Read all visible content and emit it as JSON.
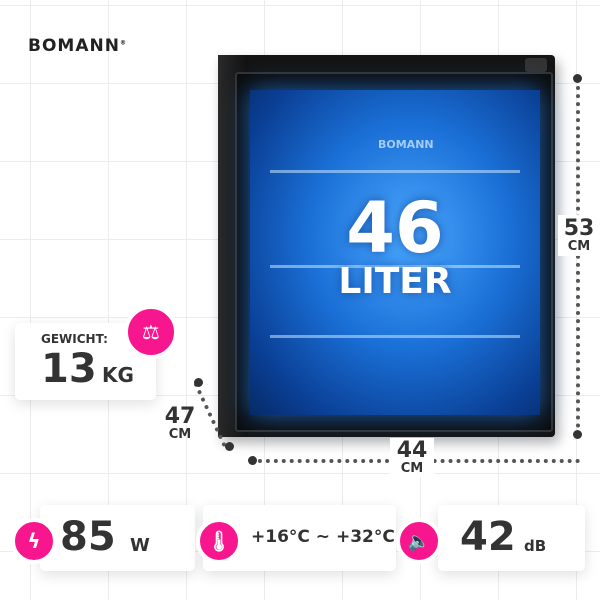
{
  "brand": "BOMANN",
  "product": {
    "capacity_value": "46",
    "capacity_unit": "LITER",
    "inner_logo": "BOMANN"
  },
  "dimensions": {
    "height": {
      "value": "53",
      "unit": "CM"
    },
    "width": {
      "value": "44",
      "unit": "CM"
    },
    "depth": {
      "value": "47",
      "unit": "CM"
    }
  },
  "weight": {
    "label": "GEWICHT:",
    "value": "13",
    "unit": "KG",
    "icon": "scale-icon"
  },
  "specs": [
    {
      "icon": "lightning-icon",
      "value": "85",
      "unit": "W"
    },
    {
      "icon": "thermometer-globe-icon",
      "value": "+16°C ~ +32°C"
    },
    {
      "icon": "speaker-icon",
      "value": "42",
      "unit": "dB"
    }
  ],
  "colors": {
    "accent": "#f8168f",
    "glow": "#1a6fd6",
    "text": "#333333"
  }
}
